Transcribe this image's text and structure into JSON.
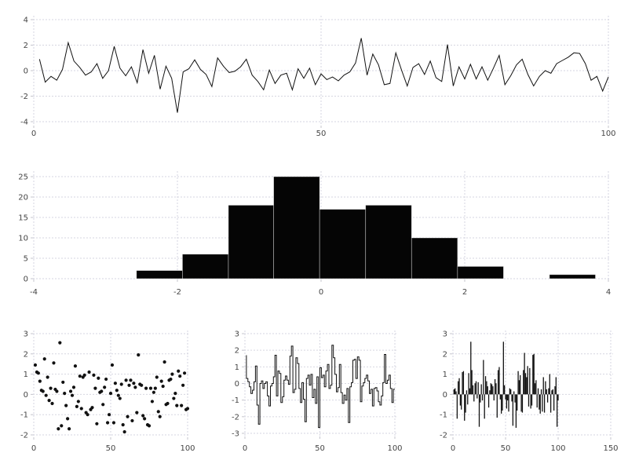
{
  "page": {
    "background": "#ffffff"
  },
  "palette": {
    "data_color": "#111111",
    "grid_color": "#d6d6e0",
    "tick_mark_color": "#c4c4cc",
    "tick_label_color": "#454545",
    "bar_fill": "#050505",
    "bar_seam": "rgba(255,255,255,0.55)"
  },
  "chart_data": [
    {
      "id": "line",
      "type": "line",
      "title": "",
      "xlabel": "",
      "ylabel": "",
      "x_start": 1,
      "values": [
        0.9,
        -0.9,
        -0.45,
        -0.75,
        0.1,
        2.2,
        0.75,
        0.25,
        -0.35,
        -0.1,
        0.55,
        -0.6,
        0.0,
        1.9,
        0.2,
        -0.4,
        0.3,
        -0.95,
        1.65,
        -0.2,
        1.2,
        -1.45,
        0.35,
        -0.6,
        -3.3,
        -0.1,
        0.15,
        0.85,
        0.1,
        -0.3,
        -1.25,
        1.0,
        0.35,
        -0.15,
        -0.05,
        0.3,
        0.9,
        -0.35,
        -0.85,
        -1.5,
        0.05,
        -1.0,
        -0.35,
        -0.2,
        -1.5,
        0.15,
        -0.6,
        0.2,
        -1.1,
        -0.25,
        -0.7,
        -0.5,
        -0.8,
        -0.35,
        -0.1,
        0.6,
        2.55,
        -0.35,
        1.3,
        0.45,
        -1.1,
        -1.0,
        1.4,
        0.05,
        -1.2,
        0.25,
        0.55,
        -0.3,
        0.75,
        -0.55,
        -0.85,
        2.05,
        -1.2,
        0.3,
        -0.65,
        0.5,
        -0.65,
        0.3,
        -0.75,
        0.2,
        1.2,
        -1.1,
        -0.4,
        0.45,
        0.9,
        -0.3,
        -1.2,
        -0.45,
        0.0,
        -0.2,
        0.55,
        0.8,
        1.05,
        1.4,
        1.35,
        0.55,
        -0.75,
        -0.45,
        -1.6,
        -0.5
      ],
      "xlim": [
        0,
        100
      ],
      "ylim": [
        -4,
        4
      ],
      "xticks": [
        0,
        50,
        100
      ],
      "xtick_labels": [
        "0",
        "50",
        "100"
      ],
      "yticks": [
        -4,
        -2,
        0,
        2,
        4
      ],
      "ytick_labels": [
        "-4",
        "-2",
        "0",
        "2",
        "4"
      ],
      "grid": true,
      "legend": false
    },
    {
      "id": "histogram",
      "type": "bar",
      "title": "",
      "bin_edges": [
        -2.57,
        -1.93,
        -1.29,
        -0.66,
        -0.02,
        0.62,
        1.26,
        1.9,
        2.54,
        3.18,
        3.82
      ],
      "counts": [
        2,
        6,
        18,
        25,
        17,
        18,
        10,
        3,
        0,
        1
      ],
      "xlim": [
        -4,
        4
      ],
      "ylim": [
        0,
        25
      ],
      "xticks": [
        -4,
        -2,
        0,
        2,
        4
      ],
      "xtick_labels": [
        "-4",
        "-2",
        "0",
        "2",
        "4"
      ],
      "yticks": [
        0,
        5,
        10,
        15,
        20,
        25
      ],
      "ytick_labels": [
        "0",
        "5",
        "10",
        "15",
        "20",
        "25"
      ],
      "grid": true,
      "legend": false
    },
    {
      "id": "scatter",
      "type": "scatter",
      "title": "",
      "x_start": 1,
      "values": [
        1.45,
        1.1,
        1.05,
        0.65,
        0.2,
        0.15,
        1.75,
        -0.05,
        0.85,
        -0.3,
        0.3,
        -0.45,
        1.55,
        0.25,
        0.15,
        -1.7,
        2.55,
        -1.55,
        0.6,
        0.05,
        -0.55,
        -1.2,
        -1.7,
        0.15,
        -0.05,
        0.35,
        1.4,
        -0.6,
        -0.35,
        0.9,
        -0.7,
        0.85,
        0.95,
        -0.9,
        -1.0,
        1.1,
        -0.75,
        -0.65,
        0.95,
        0.3,
        -1.45,
        0.8,
        0.1,
        0.15,
        -0.5,
        0.35,
        0.75,
        -1.4,
        -1.0,
        0.05,
        1.45,
        -1.4,
        0.55,
        0.2,
        -0.05,
        -0.2,
        0.5,
        -1.5,
        -1.85,
        0.7,
        -1.1,
        0.45,
        0.7,
        -1.3,
        0.55,
        0.35,
        -0.9,
        1.95,
        0.5,
        0.45,
        -1.05,
        -1.2,
        0.3,
        -1.5,
        -1.55,
        0.3,
        -0.35,
        0.1,
        0.3,
        0.85,
        -0.85,
        -1.1,
        0.65,
        0.4,
        1.6,
        -0.5,
        -0.45,
        0.7,
        0.75,
        1.0,
        -0.2,
        0.05,
        -0.55,
        1.15,
        0.9,
        -0.55,
        0.45,
        1.05,
        -0.75,
        -0.7
      ],
      "xlim": [
        0,
        100
      ],
      "ylim": [
        -2,
        3
      ],
      "xticks": [
        0,
        50,
        100
      ],
      "xtick_labels": [
        "0",
        "50",
        "100"
      ],
      "yticks": [
        -2,
        -1,
        0,
        1,
        2,
        3
      ],
      "ytick_labels": [
        "-2",
        "-1",
        "0",
        "1",
        "2",
        "3"
      ],
      "grid": true,
      "legend": false
    },
    {
      "id": "step",
      "type": "step",
      "title": "",
      "x_start": 1,
      "values": [
        1.7,
        0.3,
        0.1,
        -0.2,
        -0.6,
        -0.4,
        0.1,
        1.05,
        -1.3,
        -2.45,
        0.0,
        0.15,
        -0.3,
        0.0,
        0.1,
        -0.75,
        -1.35,
        -0.15,
        0.0,
        0.4,
        1.7,
        -0.75,
        0.75,
        0.6,
        -1.15,
        -0.8,
        0.2,
        0.45,
        0.2,
        -0.05,
        1.65,
        2.25,
        -0.55,
        -0.35,
        1.55,
        1.2,
        -0.3,
        -1.15,
        0.05,
        -0.95,
        -2.3,
        0.3,
        0.5,
        -0.1,
        0.55,
        -0.85,
        -0.35,
        -1.2,
        0.4,
        -2.65,
        0.95,
        0.35,
        0.5,
        -0.2,
        0.75,
        1.15,
        -0.3,
        -0.1,
        2.3,
        1.55,
        0.55,
        -0.5,
        -0.25,
        1.15,
        -0.55,
        -1.2,
        -0.7,
        -1.0,
        -0.3,
        -2.35,
        -0.2,
        0.05,
        1.4,
        1.45,
        0.3,
        1.6,
        1.4,
        -1.1,
        -0.15,
        0.05,
        0.3,
        0.5,
        0.15,
        -0.6,
        -0.35,
        -1.35,
        -0.3,
        -0.25,
        -0.45,
        -1.1,
        -1.3,
        -0.75,
        0.05,
        1.75,
        0.0,
        0.2,
        0.5,
        -0.3,
        -1.15,
        -0.35
      ],
      "xlim": [
        0,
        100
      ],
      "ylim": [
        -3,
        3
      ],
      "xticks": [
        0,
        50,
        100
      ],
      "xtick_labels": [
        "0",
        "50",
        "100"
      ],
      "yticks": [
        -3,
        -2,
        -1,
        0,
        1,
        2,
        3
      ],
      "ytick_labels": [
        "-3",
        "-2",
        "-1",
        "0",
        "1",
        "2",
        "3"
      ],
      "grid": true,
      "legend": false
    },
    {
      "id": "stem",
      "type": "stem",
      "title": "",
      "x_start": 1,
      "values": [
        0.25,
        0.3,
        0.15,
        -1.2,
        0.65,
        0.8,
        -0.55,
        -0.75,
        1.1,
        1.15,
        -1.3,
        -0.9,
        0.2,
        -0.5,
        1.05,
        0.3,
        2.6,
        1.2,
        0.45,
        -0.35,
        0.55,
        0.65,
        -0.2,
        0.6,
        -1.6,
        -0.4,
        0.5,
        -0.3,
        1.7,
        -1.2,
        0.9,
        0.65,
        0.4,
        -0.65,
        0.2,
        0.55,
        0.5,
        0.4,
        -0.3,
        0.75,
        0.55,
        -1.15,
        1.2,
        1.35,
        -0.25,
        -0.95,
        -0.8,
        2.6,
        0.45,
        -0.25,
        -0.7,
        -0.3,
        -0.85,
        0.3,
        0.25,
        -0.35,
        -1.55,
        0.15,
        -0.4,
        -1.65,
        -0.8,
        1.15,
        0.7,
        0.95,
        -0.85,
        -0.9,
        1.2,
        2.05,
        1.05,
        0.85,
        1.4,
        -0.6,
        1.3,
        -0.7,
        -0.55,
        1.95,
        2.0,
        0.55,
        0.7,
        -0.65,
        0.3,
        -0.75,
        -0.95,
        0.25,
        -0.85,
        0.85,
        -0.9,
        0.65,
        0.25,
        -0.4,
        0.3,
        1.0,
        -0.9,
        0.2,
        0.25,
        -0.8,
        0.4,
        0.85,
        -1.6,
        -0.3
      ],
      "xlim": [
        0,
        150
      ],
      "ylim": [
        -2,
        3
      ],
      "xticks": [
        0,
        50,
        100,
        150
      ],
      "xtick_labels": [
        "0",
        "50",
        "100",
        "150"
      ],
      "yticks": [
        -2,
        -1,
        0,
        1,
        2,
        3
      ],
      "ytick_labels": [
        "-2",
        "-1",
        "0",
        "1",
        "2",
        "3"
      ],
      "grid": true,
      "legend": false
    }
  ]
}
